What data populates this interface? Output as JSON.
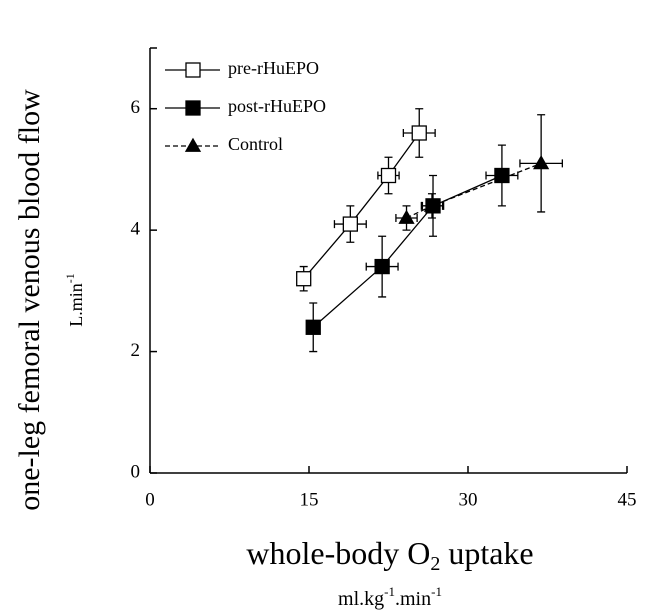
{
  "chart_data": {
    "type": "line",
    "ylabel": [
      "one-leg femoral venous blood flow"
    ],
    "yunit": [
      "L.min",
      "-1"
    ],
    "xlabel": [
      "whole-body O",
      "2",
      " uptake"
    ],
    "xunit": [
      "ml.kg",
      "-1",
      ".min",
      "-1"
    ],
    "xlim": [
      0,
      45
    ],
    "xticks": [
      0,
      15,
      30,
      45
    ],
    "ylim": [
      0,
      7
    ],
    "yticks": [
      0,
      2,
      4,
      6
    ],
    "legend": "upper left",
    "series": [
      {
        "name": "pre-rHuEPO",
        "color": "#000000",
        "marker": "square-open",
        "linestyle": "solid",
        "x": [
          14.5,
          18.9,
          22.5,
          25.4
        ],
        "values": [
          3.2,
          4.1,
          4.9,
          5.6
        ],
        "xerr": [
          0.5,
          1.5,
          1.0,
          1.5
        ],
        "yerr": [
          0.2,
          0.3,
          0.3,
          0.4
        ]
      },
      {
        "name": "post-rHuEPO",
        "color": "#000000",
        "marker": "square",
        "linestyle": "solid",
        "x": [
          15.4,
          21.9,
          26.7,
          33.2
        ],
        "values": [
          2.4,
          3.4,
          4.4,
          4.9
        ],
        "xerr": [
          0.3,
          1.5,
          1.0,
          1.5
        ],
        "yerr": [
          0.4,
          0.5,
          0.5,
          0.5
        ]
      },
      {
        "name": "Control",
        "color": "#000000",
        "marker": "triangle",
        "linestyle": "dashed",
        "x": [
          24.2,
          26.6,
          36.9
        ],
        "values": [
          4.2,
          4.4,
          5.1
        ],
        "xerr": [
          1.0,
          1.0,
          2.0
        ],
        "yerr": [
          0.2,
          0.2,
          0.8
        ]
      }
    ]
  }
}
